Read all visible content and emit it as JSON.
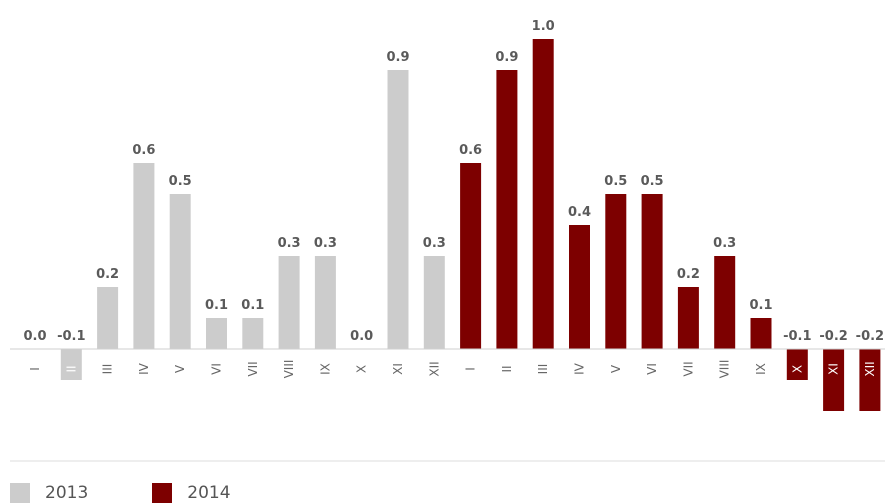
{
  "chart_data": {
    "type": "bar",
    "categories": [
      "I",
      "II",
      "III",
      "IV",
      "V",
      "VI",
      "VII",
      "VIII",
      "IX",
      "X",
      "XI",
      "XII",
      "I",
      "II",
      "III",
      "IV",
      "V",
      "VI",
      "VII",
      "VIII",
      "IX",
      "X",
      "XI",
      "XII"
    ],
    "series": [
      {
        "name": "2013",
        "color": "#cccccc",
        "values": [
          0.0,
          -0.1,
          0.2,
          0.6,
          0.5,
          0.1,
          0.1,
          0.3,
          0.3,
          0.0,
          0.9,
          0.3,
          null,
          null,
          null,
          null,
          null,
          null,
          null,
          null,
          null,
          null,
          null,
          null
        ]
      },
      {
        "name": "2014",
        "color": "#7d0000",
        "values": [
          null,
          null,
          null,
          null,
          null,
          null,
          null,
          null,
          null,
          null,
          null,
          null,
          0.6,
          0.9,
          1.0,
          0.4,
          0.5,
          0.5,
          0.2,
          0.3,
          0.1,
          -0.1,
          -0.2,
          -0.2
        ]
      }
    ],
    "value_labels": [
      "0.0",
      "-0.1",
      "0.2",
      "0.6",
      "0.5",
      "0.1",
      "0.1",
      "0.3",
      "0.3",
      "0.0",
      "0.9",
      "0.3",
      "0.6",
      "0.9",
      "1.0",
      "0.4",
      "0.5",
      "0.5",
      "0.2",
      "0.3",
      "0.1",
      "-0.1",
      "-0.2",
      "-0.2"
    ],
    "ylim": [
      -0.3,
      1.0
    ],
    "grid": false,
    "legend_position": "bottom-left"
  },
  "legend": [
    {
      "label": "2013",
      "color": "#cccccc"
    },
    {
      "label": "2014",
      "color": "#7d0000"
    }
  ]
}
